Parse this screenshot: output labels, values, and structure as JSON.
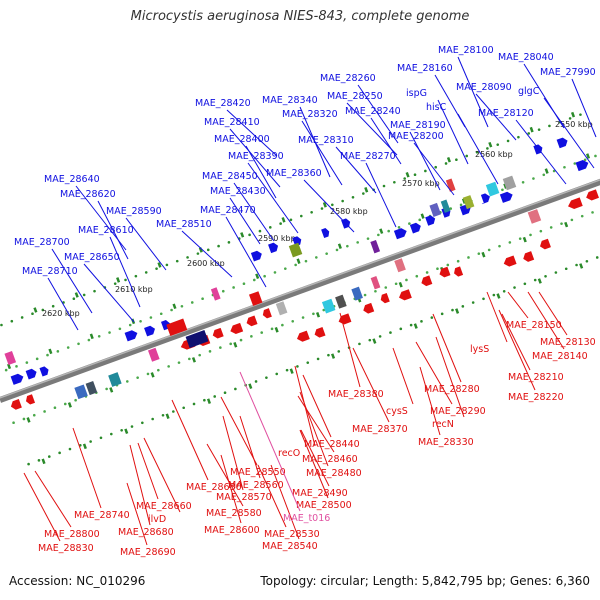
{
  "title": "Microcystis aeruginosa NIES-843, complete genome",
  "footer": {
    "accession": "Accession: NC_010296",
    "stats": "Topology: circular; Length: 5,842,795 bp; Genes: 6,360"
  },
  "colors": {
    "forward_gene": "#1010e0",
    "reverse_gene": "#e01010",
    "rna_gene": "#e050a0",
    "backbone": "#7a7a7a",
    "tick_green": "#2a8a2a"
  },
  "kbp_ticks": [
    "2550 kbp",
    "2560 kbp",
    "2570 kbp",
    "2580 kbp",
    "2590 kbp",
    "2600 kbp",
    "2610 kbp",
    "2620 kbp"
  ],
  "forward_labels": [
    "MAE_28100",
    "MAE_28040",
    "MAE_27990",
    "MAE_28160",
    "MAE_28090",
    "glgC",
    "ispG",
    "MAE_28260",
    "MAE_28250",
    "MAE_28240",
    "hisC",
    "MAE_28120",
    "MAE_28190",
    "MAE_28200",
    "MAE_28420",
    "MAE_28340",
    "MAE_28320",
    "MAE_28410",
    "MAE_28400",
    "MAE_28310",
    "MAE_28390",
    "MAE_28270",
    "MAE_28450",
    "MAE_28360",
    "MAE_28430",
    "MAE_28470",
    "MAE_28640",
    "MAE_28620",
    "MAE_28590",
    "MAE_28510",
    "MAE_28610",
    "MAE_28700",
    "MAE_28650",
    "MAE_28710"
  ],
  "reverse_labels": [
    "MAE_28150",
    "MAE_28130",
    "MAE_28140",
    "lysS",
    "MAE_28210",
    "MAE_28220",
    "MAE_28380",
    "MAE_28280",
    "MAE_28290",
    "cysS",
    "recN",
    "MAE_28370",
    "MAE_28330",
    "MAE_28440",
    "MAE_28460",
    "recO",
    "MAE_28480",
    "MAE_28550",
    "MAE_28560",
    "MAE_28490",
    "MAE_28630",
    "MAE_28570",
    "MAE_28500",
    "MAE_28580",
    "MAE_28660",
    "MAE_28740",
    "ilvD",
    "MAE_28600",
    "MAE_28530",
    "MAE_28800",
    "MAE_28680",
    "MAE_28540",
    "MAE_28830",
    "MAE_28690"
  ],
  "rna_labels": [
    "MAE_t016"
  ]
}
